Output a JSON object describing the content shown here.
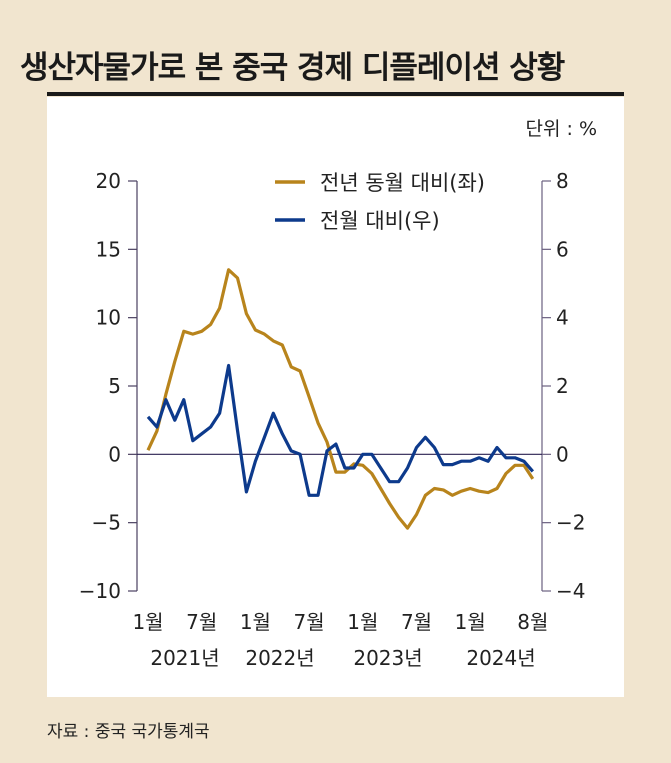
{
  "title": "생산자물가로 본 중국 경제 디플레이션 상황",
  "source": "자료 : 중국 국가통계국",
  "chart_data": {
    "type": "line",
    "title": "생산자물가로 본 중국 경제 디플레이션 상황",
    "unit_label": "단위 : %",
    "x": [
      "2021-01",
      "2021-02",
      "2021-03",
      "2021-04",
      "2021-05",
      "2021-06",
      "2021-07",
      "2021-08",
      "2021-09",
      "2021-10",
      "2021-11",
      "2021-12",
      "2022-01",
      "2022-02",
      "2022-03",
      "2022-04",
      "2022-05",
      "2022-06",
      "2022-07",
      "2022-08",
      "2022-09",
      "2022-10",
      "2022-11",
      "2022-12",
      "2023-01",
      "2023-02",
      "2023-03",
      "2023-04",
      "2023-05",
      "2023-06",
      "2023-07",
      "2023-08",
      "2023-09",
      "2023-10",
      "2023-11",
      "2023-12",
      "2024-01",
      "2024-02",
      "2024-03",
      "2024-04",
      "2024-05",
      "2024-06",
      "2024-07",
      "2024-08"
    ],
    "x_tick_labels": [
      {
        "month": "1월",
        "x": "2021-01"
      },
      {
        "month": "7월",
        "x": "2021-07"
      },
      {
        "month": "1월",
        "x": "2022-01"
      },
      {
        "month": "7월",
        "x": "2022-07"
      },
      {
        "month": "1월",
        "x": "2023-01"
      },
      {
        "month": "7월",
        "x": "2023-07"
      },
      {
        "month": "1월",
        "x": "2024-01"
      },
      {
        "month": "8월",
        "x": "2024-08"
      }
    ],
    "year_labels": [
      "2021년",
      "2022년",
      "2023년",
      "2024년"
    ],
    "left_axis": {
      "ylim": [
        -10,
        20
      ],
      "ticks": [
        20,
        15,
        10,
        5,
        0,
        -5,
        -10
      ]
    },
    "right_axis": {
      "ylim": [
        -4,
        8
      ],
      "ticks": [
        8,
        6,
        4,
        2,
        0,
        -2,
        -4
      ]
    },
    "legend_placement": "top-center",
    "grid": false,
    "series": [
      {
        "name": "전년 동월 대비(좌)",
        "axis": "left",
        "color": "#b8841c",
        "values": [
          0.3,
          1.7,
          4.4,
          6.8,
          9.0,
          8.8,
          9.0,
          9.5,
          10.7,
          13.5,
          12.9,
          10.3,
          9.1,
          8.8,
          8.3,
          8.0,
          6.4,
          6.1,
          4.2,
          2.3,
          0.9,
          -1.3,
          -1.3,
          -0.7,
          -0.8,
          -1.4,
          -2.5,
          -3.6,
          -4.6,
          -5.4,
          -4.4,
          -3.0,
          -2.5,
          -2.6,
          -3.0,
          -2.7,
          -2.5,
          -2.7,
          -2.8,
          -2.5,
          -1.4,
          -0.8,
          -0.8,
          -1.8
        ]
      },
      {
        "name": "전월 대비(우)",
        "axis": "right",
        "color": "#0d3a8c",
        "values": [
          1.1,
          0.8,
          1.6,
          1.0,
          1.6,
          0.4,
          0.6,
          0.8,
          1.2,
          2.6,
          0.7,
          -1.1,
          -0.2,
          0.5,
          1.2,
          0.6,
          0.1,
          0.0,
          -1.2,
          -1.2,
          0.1,
          0.3,
          -0.4,
          -0.4,
          0.0,
          0.0,
          -0.4,
          -0.8,
          -0.8,
          -0.4,
          0.2,
          0.5,
          0.2,
          -0.3,
          -0.3,
          -0.2,
          -0.2,
          -0.1,
          -0.2,
          0.2,
          -0.1,
          -0.1,
          -0.2,
          -0.5
        ]
      }
    ],
    "zero_line_color": "#2a2050"
  }
}
